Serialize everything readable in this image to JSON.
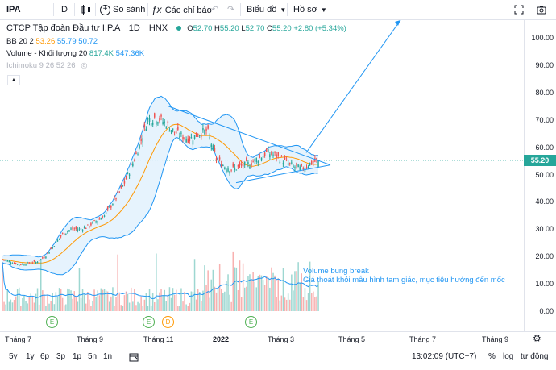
{
  "toolbar": {
    "symbol": "IPA",
    "interval": "D",
    "compare_label": "So sánh",
    "indicators_label": "Các chỉ báo",
    "chart_type_label": "Biểu đồ",
    "profile_label": "Hồ sơ"
  },
  "legend": {
    "title": "CTCP Tập đoàn Đầu tư I.P.A",
    "timeframe": "1D",
    "exchange": "HNX",
    "ohlc": {
      "o_label": "O",
      "o": "52.70",
      "h_label": "H",
      "h": "55.20",
      "l_label": "L",
      "l": "52.70",
      "c_label": "C",
      "c": "55.20",
      "change": "+2.80 (+5.34%)"
    },
    "bb": {
      "name": "BB 20 2",
      "v1": "53.26",
      "v2": "55.79",
      "v3": "50.72"
    },
    "volume": {
      "name": "Volume - Khối lượng 20",
      "v1": "817.4K",
      "v2": "547.36K"
    },
    "ichimoku": {
      "name": "Ichimoku 9 26 52 26"
    }
  },
  "price_axis": [
    "100.00",
    "90.00",
    "80.00",
    "70.00",
    "60.00",
    "50.00",
    "40.00",
    "30.00",
    "20.00",
    "10.00",
    "0.00"
  ],
  "current_price": "55.20",
  "time_axis": [
    "Tháng 7",
    "Tháng 9",
    "Tháng 11",
    "2022",
    "Tháng 3",
    "Tháng 5",
    "Tháng 7",
    "Tháng 9"
  ],
  "annotation": {
    "line1": "Volume bung break",
    "line2": "Giá thoát khỏi mẫu hình tam giác, mục tiêu hướng đến mốc"
  },
  "events": [
    {
      "label": "E",
      "type": "earnings"
    },
    {
      "label": "E",
      "type": "earnings"
    },
    {
      "label": "D",
      "type": "dividend"
    },
    {
      "label": "E",
      "type": "earnings"
    }
  ],
  "ranges": [
    "5y",
    "1y",
    "6p",
    "3p",
    "1p",
    "5n",
    "1n"
  ],
  "bottom": {
    "clock": "13:02:09 (UTC+7)",
    "percent": "%",
    "log": "log",
    "auto": "tự động"
  },
  "colors": {
    "up": "#26a69a",
    "down": "#ef5350",
    "bb": "#2196f3",
    "bb_fill": "#e3f2fd",
    "ma": "#ff9800",
    "volume_ma": "#2196f3",
    "trend": "#2196f3"
  },
  "chart_data": {
    "type": "candlestick",
    "ylim": [
      -3,
      108
    ],
    "x_ticks": [
      "Tháng 7",
      "Tháng 9",
      "Tháng 11",
      "2022",
      "Tháng 3",
      "Tháng 5",
      "Tháng 7",
      "Tháng 9"
    ],
    "close_approx": [
      19,
      18,
      17,
      17.5,
      18,
      20,
      24,
      28,
      30,
      30,
      31,
      33,
      35,
      40,
      45,
      52,
      60,
      70,
      71,
      69,
      66,
      64,
      63,
      65,
      66,
      56,
      53,
      52,
      53,
      54,
      56,
      58,
      57,
      55,
      53,
      52,
      54,
      55.2
    ],
    "target_hint": 100
  }
}
